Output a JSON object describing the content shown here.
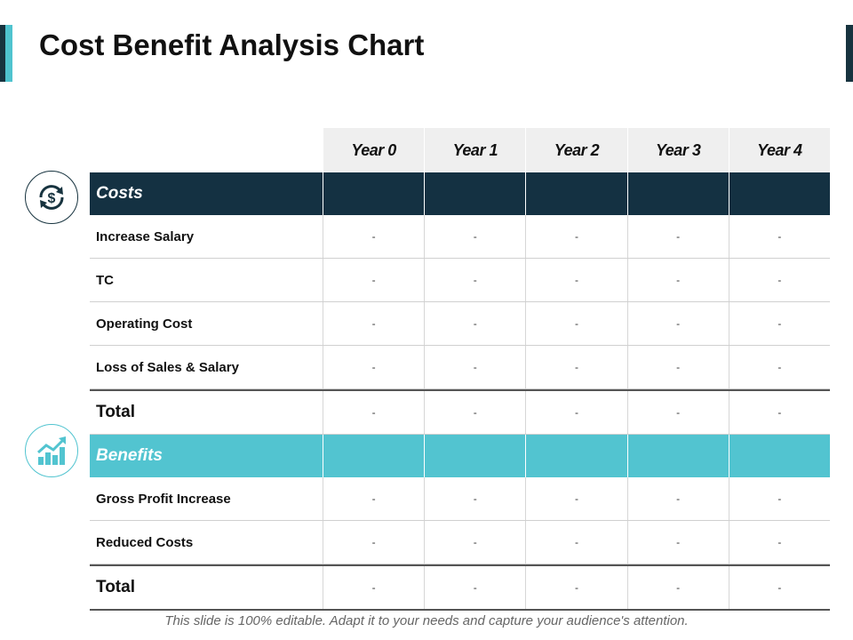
{
  "slide": {
    "title": "Cost Benefit Analysis Chart",
    "footer": "This slide is 100% editable. Adapt it to your needs and capture your audience's attention."
  },
  "colors": {
    "dark": "#143142",
    "accent": "#52c4d0",
    "header_bg": "#efefef"
  },
  "icons": {
    "costs": "dollar-refresh-icon",
    "benefits": "growth-chart-icon"
  },
  "table": {
    "columns": [
      "Year 0",
      "Year 1",
      "Year 2",
      "Year 3",
      "Year 4"
    ],
    "costs": {
      "label": "Costs",
      "rows": [
        {
          "label": "Increase Salary",
          "values": [
            "-",
            "-",
            "-",
            "-",
            "-"
          ]
        },
        {
          "label": "TC",
          "values": [
            "-",
            "-",
            "-",
            "-",
            "-"
          ]
        },
        {
          "label": "Operating Cost",
          "values": [
            "-",
            "-",
            "-",
            "-",
            "-"
          ]
        },
        {
          "label": "Loss of Sales & Salary",
          "values": [
            "-",
            "-",
            "-",
            "-",
            "-"
          ]
        }
      ],
      "total": {
        "label": "Total",
        "values": [
          "-",
          "-",
          "-",
          "-",
          "-"
        ]
      }
    },
    "benefits": {
      "label": "Benefits",
      "rows": [
        {
          "label": "Gross Profit Increase",
          "values": [
            "-",
            "-",
            "-",
            "-",
            "-"
          ]
        },
        {
          "label": "Reduced Costs",
          "values": [
            "-",
            "-",
            "-",
            "-",
            "-"
          ]
        }
      ],
      "total": {
        "label": "Total",
        "values": [
          "-",
          "-",
          "-",
          "-",
          "-"
        ]
      }
    }
  }
}
